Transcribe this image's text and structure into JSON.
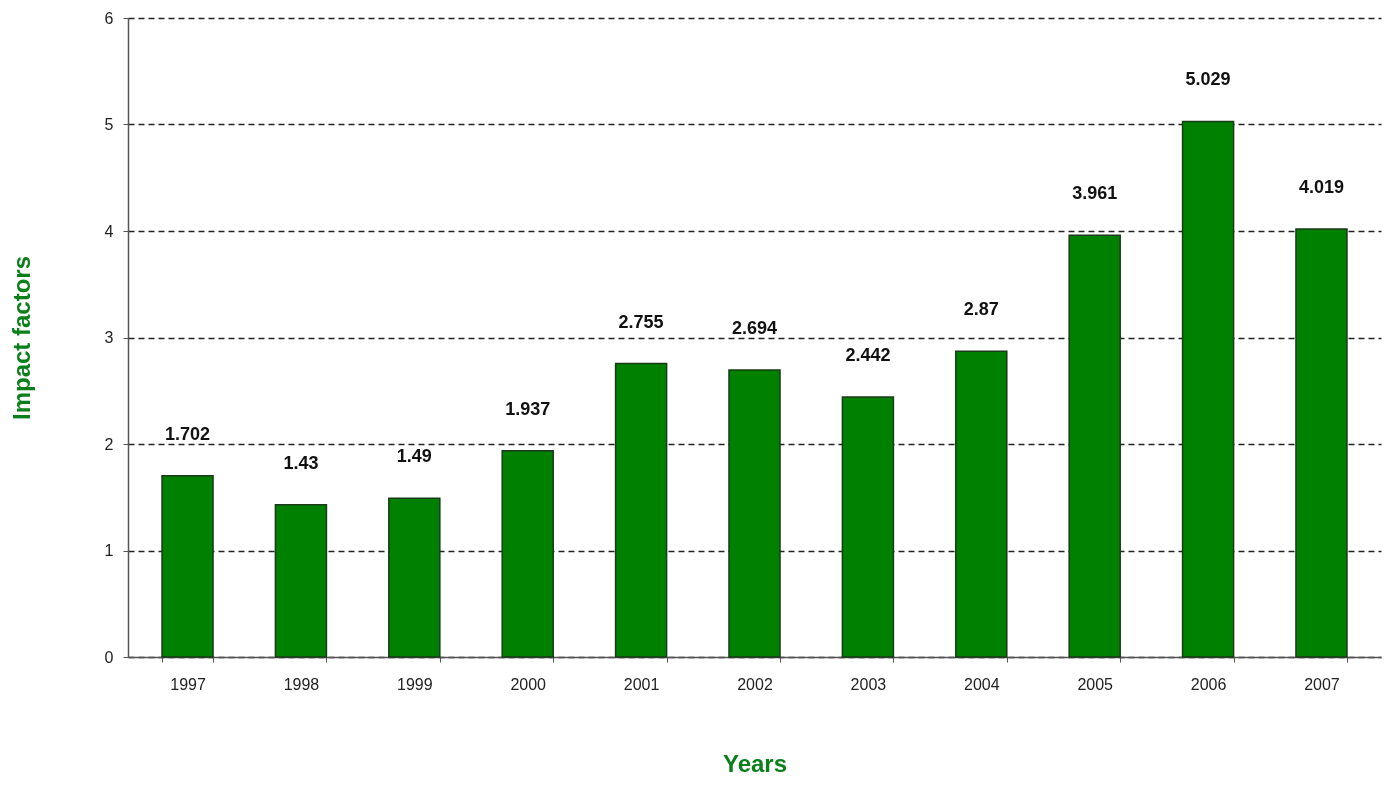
{
  "chart_data": {
    "type": "bar",
    "xlabel": "Years",
    "ylabel": "Impact factors",
    "categories": [
      "1997",
      "1998",
      "1999",
      "2000",
      "2001",
      "2002",
      "2003",
      "2004",
      "2005",
      "2006",
      "2007"
    ],
    "values": [
      1.702,
      1.43,
      1.49,
      1.937,
      2.755,
      2.694,
      2.442,
      2.87,
      3.961,
      5.029,
      4.019
    ],
    "color": "#008000",
    "ylim": [
      0,
      6
    ],
    "yticks": [
      0,
      1,
      2,
      3,
      4,
      5,
      6
    ],
    "grid": "y",
    "data_labels": true
  }
}
